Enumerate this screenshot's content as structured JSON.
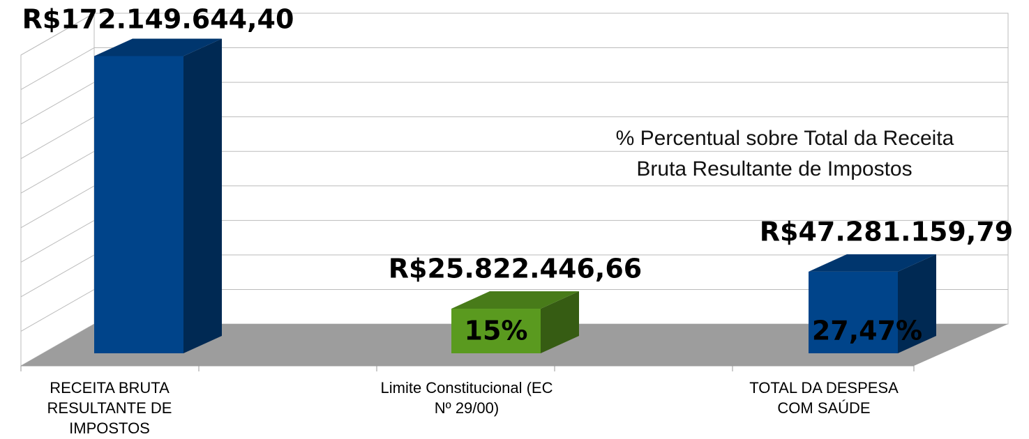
{
  "chart_data": {
    "type": "bar3d",
    "categories": [
      "RECEITA BRUTA RESULTANTE DE IMPOSTOS",
      "Limite Constitucional (EC Nº 29/00)",
      "TOTAL DA DESPESA COM SAÚDE"
    ],
    "values": [
      172149644.4,
      25822446.66,
      47281159.79
    ],
    "value_labels": [
      "R$172.149.644,40",
      "R$25.822.446,66",
      "R$47.281.159,79"
    ],
    "percent_labels": [
      null,
      "15%",
      "27,47%"
    ],
    "colors": [
      "#00448a",
      "#5a9a1f",
      "#00448a"
    ],
    "annotation": [
      "% Percentual sobre Total da Receita",
      "Bruta Resultante de Impostos"
    ],
    "ylim": [
      0,
      180000000
    ],
    "yticks": [
      0,
      20000000,
      40000000,
      60000000,
      80000000,
      100000000,
      120000000,
      140000000,
      160000000,
      180000000
    ],
    "grid": true
  }
}
